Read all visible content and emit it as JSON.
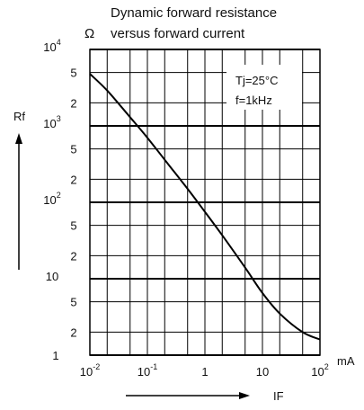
{
  "chart_data": {
    "type": "line",
    "title_line1": "Dynamic forward resistance",
    "title_line2": "versus forward current",
    "y_unit": "Ω",
    "ylabel": "Rf",
    "xlabel": "IF",
    "x_unit": "mA",
    "x_scale": "log",
    "y_scale": "log",
    "xlim": [
      0.01,
      100
    ],
    "ylim": [
      1,
      10000
    ],
    "grid": true,
    "x_ticks": [
      {
        "value": 0.01,
        "base": "10",
        "exp": "-2"
      },
      {
        "value": 0.1,
        "base": "10",
        "exp": "-1"
      },
      {
        "value": 1,
        "base": "1",
        "exp": ""
      },
      {
        "value": 10,
        "base": "10",
        "exp": ""
      },
      {
        "value": 100,
        "base": "10",
        "exp": "2"
      }
    ],
    "y_ticks": [
      {
        "value": 1,
        "base": "1",
        "exp": ""
      },
      {
        "value": 2,
        "base": "2",
        "exp": ""
      },
      {
        "value": 5,
        "base": "5",
        "exp": ""
      },
      {
        "value": 10,
        "base": "10",
        "exp": ""
      },
      {
        "value": 20,
        "base": "2",
        "exp": ""
      },
      {
        "value": 50,
        "base": "5",
        "exp": ""
      },
      {
        "value": 100,
        "base": "10",
        "exp": "2"
      },
      {
        "value": 200,
        "base": "2",
        "exp": ""
      },
      {
        "value": 500,
        "base": "5",
        "exp": ""
      },
      {
        "value": 1000,
        "base": "10",
        "exp": "3"
      },
      {
        "value": 2000,
        "base": "2",
        "exp": ""
      },
      {
        "value": 5000,
        "base": "5",
        "exp": ""
      },
      {
        "value": 10000,
        "base": "10",
        "exp": "4"
      }
    ],
    "annotations": [
      "Tj=25°C",
      "f=1kHz"
    ],
    "series": [
      {
        "x": [
          0.01,
          0.02,
          0.05,
          0.1,
          0.2,
          0.5,
          1,
          2,
          5,
          10,
          20,
          50,
          100
        ],
        "y": [
          4800,
          2900,
          1300,
          700,
          360,
          150,
          75,
          37,
          14,
          6.5,
          3.5,
          2,
          1.6
        ]
      }
    ]
  }
}
